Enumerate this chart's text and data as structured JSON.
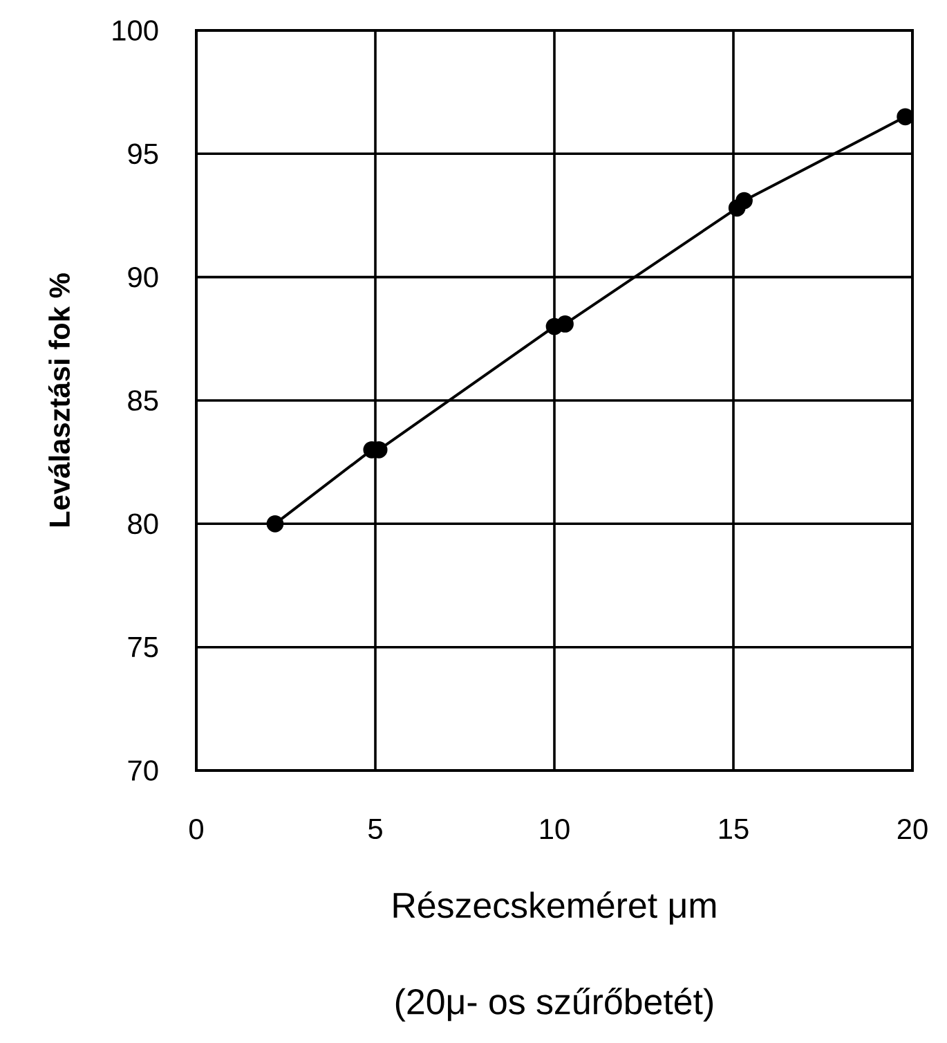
{
  "chart_data": {
    "type": "line",
    "xlabel": "Részecskeméret μm",
    "ylabel": "**Leválasztási fok %**",
    "annotations": [
      "(20μ- os szűrőbetét)"
    ],
    "x": [
      2.2,
      4.9,
      5.1,
      10,
      10.3,
      15.1,
      15.3,
      19.8
    ],
    "series": [
      {
        "color": "#000000",
        "values": [
          80,
          83,
          83,
          88,
          88.1,
          92.8,
          93.1,
          96.5
        ]
      }
    ],
    "xlim": [
      0,
      20
    ],
    "ylim": [
      70,
      100
    ],
    "xticks": [
      0,
      5,
      10,
      15,
      20
    ],
    "yticks": [
      70,
      75,
      80,
      85,
      90,
      95,
      100
    ],
    "grid": true,
    "marker": "circle",
    "line_style": "solid"
  }
}
